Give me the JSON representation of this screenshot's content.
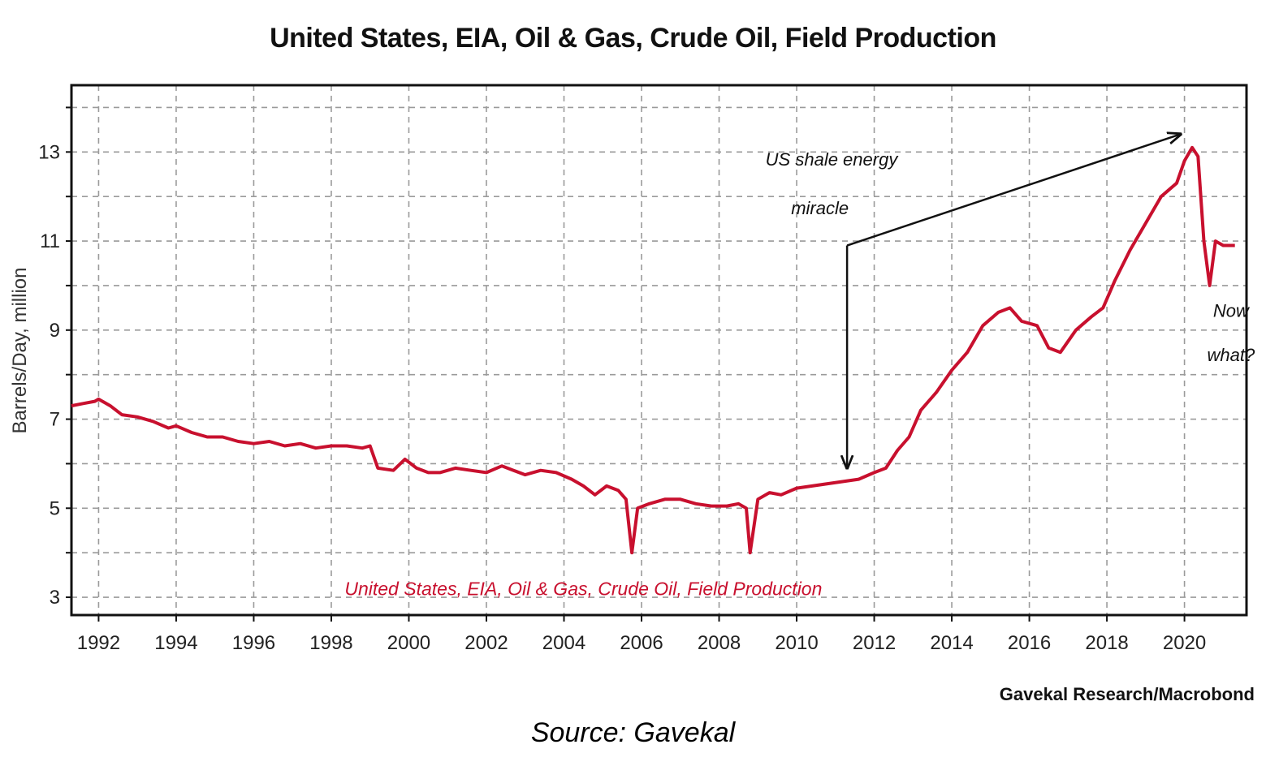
{
  "header": {
    "title": "United States, EIA, Oil & Gas, Crude Oil, Field Production"
  },
  "footer": {
    "credit": "Gavekal Research/Macrobond",
    "source": "Source: Gavekal"
  },
  "chart_data": {
    "type": "line",
    "title": "United States, EIA, Oil & Gas, Crude Oil, Field Production",
    "xlabel": "",
    "ylabel": "Barrels/Day, million",
    "xlim": [
      1991.3,
      2021.6
    ],
    "ylim": [
      2.6,
      14.5
    ],
    "xticks": [
      "1992",
      "1994",
      "1996",
      "1998",
      "2000",
      "2002",
      "2004",
      "2006",
      "2008",
      "2010",
      "2012",
      "2014",
      "2016",
      "2018",
      "2020"
    ],
    "yticks": [
      3,
      5,
      7,
      9,
      11,
      13
    ],
    "grid": true,
    "series": [
      {
        "name": "United States, EIA, Oil & Gas, Crude Oil, Field Production",
        "color": "#c8102e",
        "x": [
          1991.3,
          1991.6,
          1991.9,
          1992.0,
          1992.3,
          1992.6,
          1993.0,
          1993.4,
          1993.8,
          1994.0,
          1994.4,
          1994.8,
          1995.2,
          1995.6,
          1996.0,
          1996.4,
          1996.8,
          1997.2,
          1997.6,
          1998.0,
          1998.4,
          1998.8,
          1999.0,
          1999.2,
          1999.6,
          1999.9,
          2000.2,
          2000.5,
          2000.8,
          2001.2,
          2001.6,
          2002.0,
          2002.4,
          2002.7,
          2003.0,
          2003.4,
          2003.8,
          2004.2,
          2004.5,
          2004.8,
          2005.1,
          2005.4,
          2005.6,
          2005.75,
          2005.9,
          2006.2,
          2006.6,
          2007.0,
          2007.4,
          2007.8,
          2008.2,
          2008.5,
          2008.7,
          2008.8,
          2009.0,
          2009.3,
          2009.6,
          2010.0,
          2010.4,
          2010.8,
          2011.2,
          2011.6,
          2012.0,
          2012.3,
          2012.6,
          2012.9,
          2013.2,
          2013.6,
          2014.0,
          2014.4,
          2014.8,
          2015.2,
          2015.5,
          2015.8,
          2016.2,
          2016.5,
          2016.8,
          2017.2,
          2017.6,
          2017.9,
          2018.2,
          2018.6,
          2019.0,
          2019.4,
          2019.8,
          2020.0,
          2020.2,
          2020.35,
          2020.5,
          2020.65,
          2020.8,
          2021.0,
          2021.3
        ],
        "y": [
          7.3,
          7.35,
          7.4,
          7.45,
          7.3,
          7.1,
          7.05,
          6.95,
          6.8,
          6.85,
          6.7,
          6.6,
          6.6,
          6.5,
          6.45,
          6.5,
          6.4,
          6.45,
          6.35,
          6.4,
          6.4,
          6.35,
          6.4,
          5.9,
          5.85,
          6.1,
          5.9,
          5.8,
          5.8,
          5.9,
          5.85,
          5.8,
          5.95,
          5.85,
          5.75,
          5.85,
          5.8,
          5.65,
          5.5,
          5.3,
          5.5,
          5.4,
          5.2,
          4.0,
          5.0,
          5.1,
          5.2,
          5.2,
          5.1,
          5.05,
          5.05,
          5.1,
          5.0,
          4.0,
          5.2,
          5.35,
          5.3,
          5.45,
          5.5,
          5.55,
          5.6,
          5.65,
          5.8,
          5.9,
          6.3,
          6.6,
          7.2,
          7.6,
          8.1,
          8.5,
          9.1,
          9.4,
          9.5,
          9.2,
          9.1,
          8.6,
          8.5,
          9.0,
          9.3,
          9.5,
          10.1,
          10.8,
          11.4,
          12.0,
          12.3,
          12.8,
          13.1,
          12.9,
          11.0,
          10.0,
          11.0,
          10.9,
          10.9
        ]
      }
    ],
    "annotations": [
      {
        "text": [
          "US shale energy",
          "miracle"
        ]
      },
      {
        "text": [
          "Now",
          "what?"
        ]
      }
    ]
  }
}
